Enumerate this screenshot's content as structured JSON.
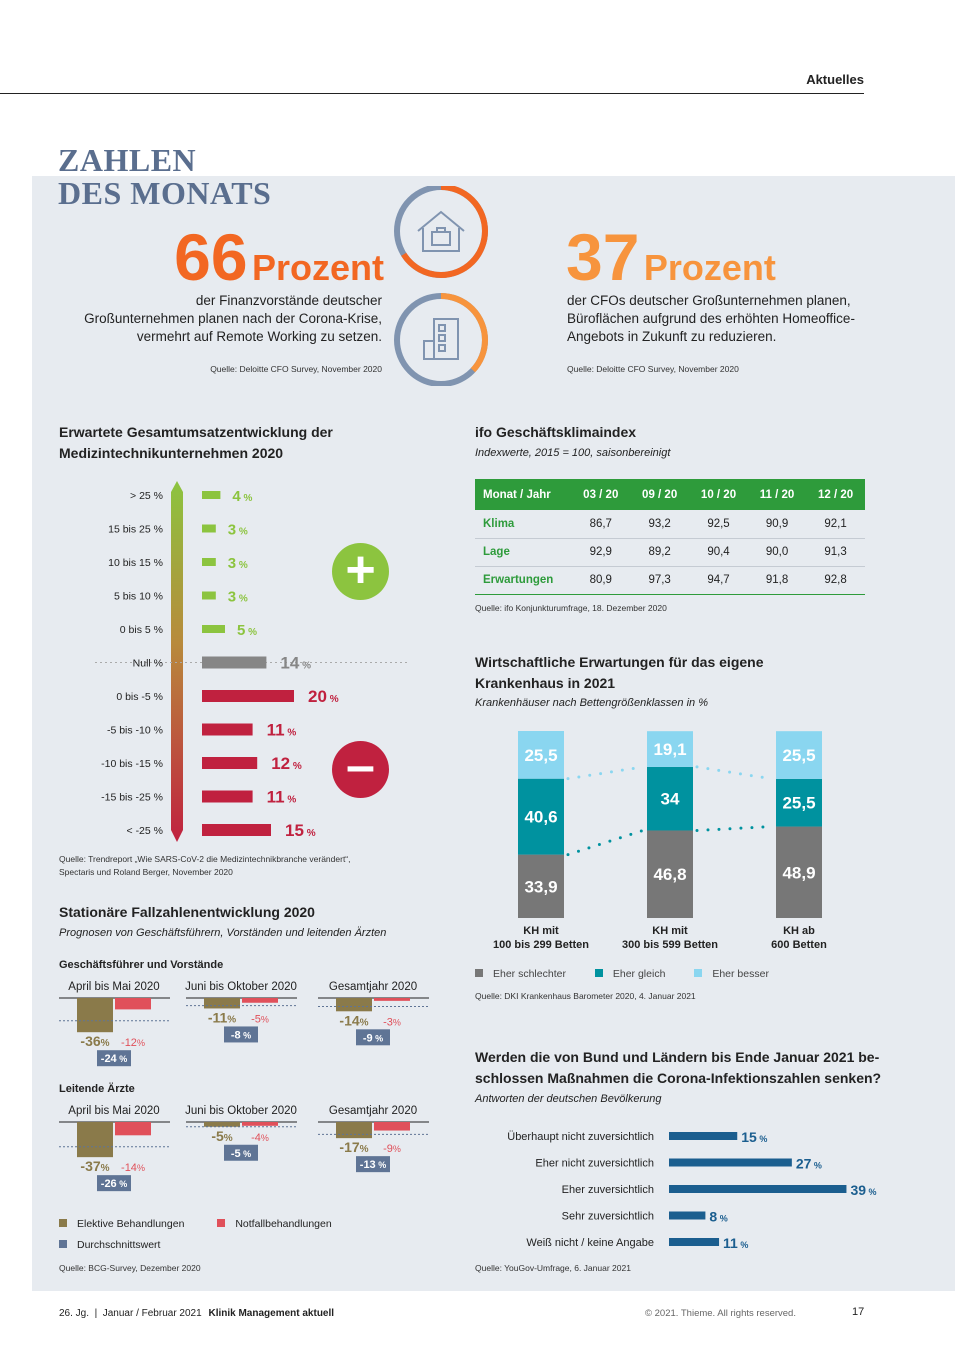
{
  "header": {
    "section": "Aktuelles"
  },
  "title": {
    "line1": "ZAHLEN",
    "line2": "DES MONATS"
  },
  "stat1": {
    "number": "66",
    "unit": "Prozent",
    "text1": "der Finanzvorstände deutscher",
    "text2": "Großunternehmen planen nach der Corona-Krise,",
    "text3": "vermehrt auf Remote Working zu setzen.",
    "source": "Quelle: Deloitte CFO Survey, November 2020"
  },
  "stat2": {
    "number": "37",
    "unit": "Prozent",
    "text1": "der CFOs deutscher Großunternehmen planen,",
    "text2": "Büroflächen aufgrund des erhöhten Homeoffice-",
    "text3": "Angebots in Zukunft zu reduzieren.",
    "source": "Quelle: Deloitte CFO Survey, November 2020"
  },
  "colors": {
    "orange_dark": "#f26722",
    "orange": "#f7943d",
    "slate": "#8094b0",
    "green": "#8cc43f",
    "grey": "#868686",
    "red": "#c0213f",
    "teal": "#00929f",
    "lightblue": "#8ad6f0",
    "darkgrey": "#777777",
    "olive": "#8a7a4a",
    "pink": "#e0505a",
    "navy": "#1b5e8f",
    "tablegreen": "#2e9b3b"
  },
  "umsatz": {
    "heading1": "Erwartete Gesamtumsatzentwicklung der",
    "heading2": "Medizintechnikunternehmen 2020",
    "source1": "Quelle: Trendreport „Wie SARS-CoV-2 die Medizintechnikbranche verändert“,",
    "source2": "Spectaris und Roland Berger, November 2020",
    "plus": "+",
    "minus": "–"
  },
  "chart_data": [
    {
      "type": "bar",
      "name": "umsatz",
      "categories": [
        "> 25 %",
        "15 bis 25 %",
        "10 bis 15 %",
        "5 bis 10 %",
        "0 bis 5 %",
        "Null %",
        "0 bis -5 %",
        "-5 bis -10 %",
        "-10 bis -15 %",
        "-15 bis -25 %",
        "< -25 %"
      ],
      "values": [
        4,
        3,
        3,
        3,
        5,
        14,
        20,
        11,
        12,
        11,
        15
      ],
      "unit": "%"
    },
    {
      "type": "bar",
      "name": "krankenhaus",
      "categories": [
        "KH mit 100 bis 299 Betten",
        "KH mit 300 bis 599 Betten",
        "KH ab 600 Betten"
      ],
      "series": [
        {
          "name": "Eher schlechter",
          "values": [
            33.9,
            46.8,
            48.9
          ]
        },
        {
          "name": "Eher gleich",
          "values": [
            40.6,
            34,
            25.5
          ]
        },
        {
          "name": "Eher besser",
          "values": [
            25.5,
            19.1,
            25.5
          ]
        }
      ],
      "labels": [
        [
          "33,9",
          "40,6",
          "25,5"
        ],
        [
          "46,8",
          "34",
          "19,1"
        ],
        [
          "48,9",
          "25,5",
          "25,5"
        ]
      ]
    },
    {
      "type": "bar",
      "name": "corona",
      "categories": [
        "Überhaupt nicht zuversichtlich",
        "Eher nicht zuversichtlich",
        "Eher zuversichtlich",
        "Sehr zuversichtlich",
        "Weiß nicht / keine Angabe"
      ],
      "values": [
        15,
        27,
        39,
        8,
        11
      ],
      "unit": "%"
    },
    {
      "type": "bar",
      "name": "fallzahlen",
      "groups": [
        {
          "title": "Geschäftsführer und Vorstände",
          "periods": [
            {
              "label": "April bis Mai 2020",
              "elektiv": -36,
              "notfall": -12,
              "avg": -24
            },
            {
              "label": "Juni bis Oktober 2020",
              "elektiv": -11,
              "notfall": -5,
              "avg": -8
            },
            {
              "label": "Gesamtjahr 2020",
              "elektiv": -14,
              "notfall": -3,
              "avg": -9
            }
          ]
        },
        {
          "title": "Leitende Ärzte",
          "periods": [
            {
              "label": "April bis Mai 2020",
              "elektiv": -37,
              "notfall": -14,
              "avg": -26
            },
            {
              "label": "Juni bis Oktober 2020",
              "elektiv": -5,
              "notfall": -4,
              "avg": -5
            },
            {
              "label": "Gesamtjahr 2020",
              "elektiv": -17,
              "notfall": -9,
              "avg": -13
            }
          ]
        }
      ]
    }
  ],
  "ifo": {
    "heading": "ifo Geschäftsklimaindex",
    "sub": "Indexwerte, 2015 = 100, saisonbereinigt",
    "headers": [
      "Monat / Jahr",
      "03 / 20",
      "09 / 20",
      "10 / 20",
      "11 / 20",
      "12 / 20"
    ],
    "rows": [
      [
        "Klima",
        "86,7",
        "93,2",
        "92,5",
        "90,9",
        "92,1"
      ],
      [
        "Lage",
        "92,9",
        "89,2",
        "90,4",
        "90,0",
        "91,3"
      ],
      [
        "Erwartungen",
        "80,9",
        "97,3",
        "94,7",
        "91,8",
        "92,8"
      ]
    ],
    "source": "Quelle: ifo Konjunkturumfrage, 18. Dezember 2020"
  },
  "kh": {
    "heading1": "Wirtschaftliche Erwartungen für das eigene",
    "heading2": "Krankenhaus in 2021",
    "sub": "Krankenhäuser nach Bettengrößenklassen in %",
    "cats": [
      [
        "KH mit",
        "100 bis 299 Betten"
      ],
      [
        "KH mit",
        "300 bis 599 Betten"
      ],
      [
        "KH ab",
        "600 Betten"
      ]
    ],
    "legend": [
      "Eher schlechter",
      "Eher gleich",
      "Eher besser"
    ],
    "source": "Quelle: DKI Krankenhaus Barometer 2020, 4. Januar 2021"
  },
  "fall": {
    "heading": "Stationäre Fallzahlenentwicklung 2020",
    "sub": "Prognosen von Geschäftsführern, Vorständen und leitenden Ärzten",
    "legend": [
      "Elektive Behandlungen",
      "Notfallbehandlungen",
      "Durchschnittswert"
    ],
    "source": "Quelle: BCG-Survey, Dezember 2020"
  },
  "corona": {
    "heading1": "Werden die von Bund und Ländern bis Ende Januar 2021 be-",
    "heading2": "schlossen Maßnahmen die Corona-Infektionszahlen senken?",
    "sub": "Antworten der deutschen Bevölkerung",
    "source": "Quelle: YouGov-Umfrage, 6. Januar 2021"
  },
  "footer": {
    "left": "26. Jg.  |  Januar / Februar 2021",
    "journal": "Klinik Management aktuell",
    "copyright": "© 2021. Thieme. All rights reserved.",
    "page": "17"
  }
}
